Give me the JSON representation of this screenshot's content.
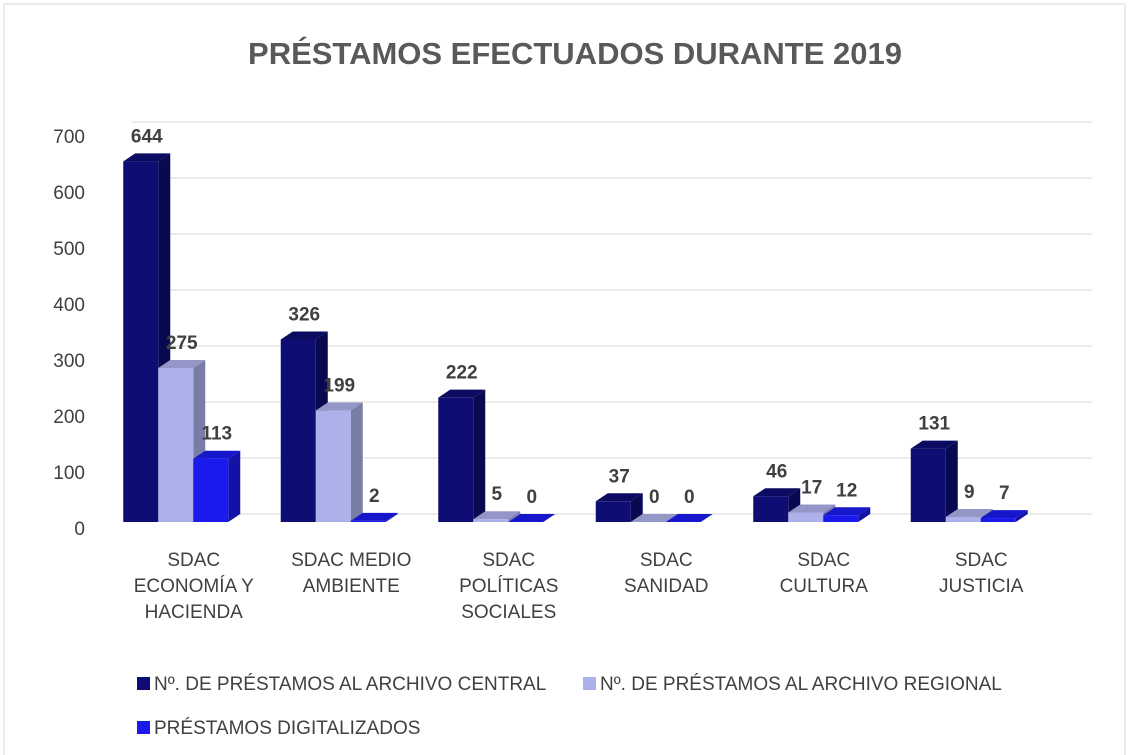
{
  "chart_data": {
    "type": "bar3d",
    "title": "PRÉSTAMOS EFECTUADOS DURANTE 2019",
    "categories": [
      "SDAC ECONOMÍA Y HACIENDA",
      "SDAC MEDIO AMBIENTE",
      "SDAC POLÍTICAS SOCIALES",
      "SDAC SANIDAD",
      "SDAC CULTURA",
      "SDAC JUSTICIA"
    ],
    "series": [
      {
        "name": "Nº. DE PRÉSTAMOS AL ARCHIVO CENTRAL",
        "color": "#0d0d73",
        "values": [
          644,
          326,
          222,
          37,
          46,
          131
        ]
      },
      {
        "name": "Nº. DE PRÉSTAMOS AL ARCHIVO REGIONAL",
        "color": "#adb1ea",
        "values": [
          275,
          199,
          5,
          0,
          17,
          9
        ]
      },
      {
        "name": "PRÉSTAMOS DIGITALIZADOS",
        "color": "#1a1aee",
        "values": [
          113,
          2,
          0,
          0,
          12,
          7
        ]
      }
    ],
    "ylim": [
      0,
      700
    ],
    "yticks": [
      0,
      100,
      200,
      300,
      400,
      500,
      600,
      700
    ],
    "grid": true,
    "legend": "bottom"
  }
}
